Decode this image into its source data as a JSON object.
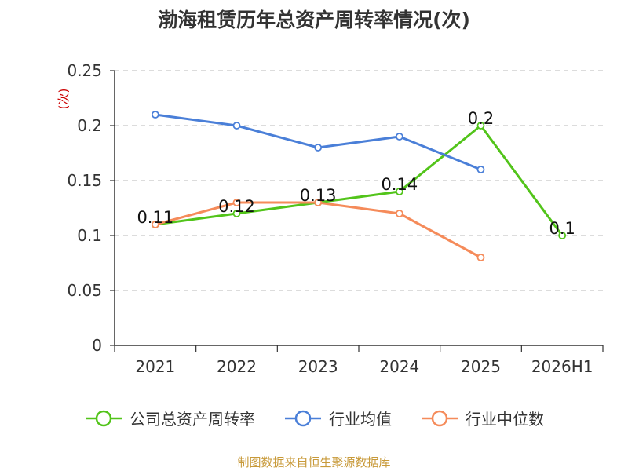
{
  "source": "制图数据来自恒生聚源数据库",
  "chart_data": {
    "type": "line",
    "title": "渤海租赁历年总资产周转率情况(次)",
    "ylabel": "(次)",
    "ylim": [
      0,
      0.25
    ],
    "yticks": [
      "0",
      "0.05",
      "0.1",
      "0.15",
      "0.2",
      "0.25"
    ],
    "categories": [
      "2021",
      "2022",
      "2023",
      "2024",
      "2025",
      "2026H1"
    ],
    "grid": true,
    "legend_position": "bottom",
    "series": [
      {
        "name": "公司总资产周转率",
        "color": "#52c41a",
        "values": [
          0.11,
          0.12,
          0.13,
          0.14,
          0.2,
          0.1
        ],
        "labels": [
          "0.11",
          "0.12",
          "0.13",
          "0.14",
          "0.2",
          "0.1"
        ]
      },
      {
        "name": "行业均值",
        "color": "#4a7fd8",
        "values": [
          0.21,
          0.2,
          0.18,
          0.19,
          0.16,
          null
        ]
      },
      {
        "name": "行业中位数",
        "color": "#f58b5a",
        "values": [
          0.11,
          0.13,
          0.13,
          0.12,
          0.08,
          null
        ]
      }
    ]
  }
}
